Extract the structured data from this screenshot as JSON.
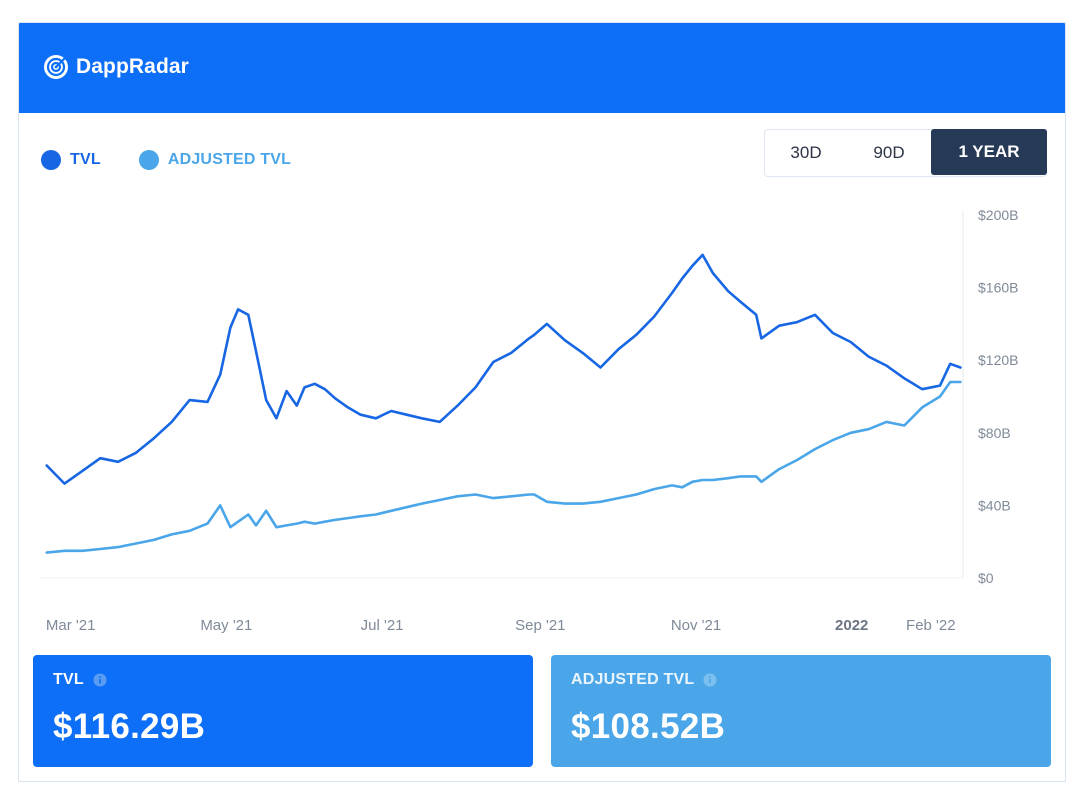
{
  "header": {
    "brand": "DappRadar",
    "logo_icon": "dappradar-radar-icon"
  },
  "legend": [
    {
      "label": "TVL",
      "color": "#1766e3"
    },
    {
      "label": "ADJUSTED TVL",
      "color": "#4aa6e8"
    }
  ],
  "range_selector": {
    "options": [
      "30D",
      "90D",
      "1 YEAR"
    ],
    "selected": "1 YEAR"
  },
  "chart_data": {
    "type": "line",
    "x_axis_ticks": [
      "Mar '21",
      "May '21",
      "Jul '21",
      "Sep '21",
      "Nov '21",
      "2022",
      "Feb '22"
    ],
    "y_axis_ticks": [
      "$0",
      "$40B",
      "$80B",
      "$120B",
      "$160B",
      "$200B"
    ],
    "ylim": [
      0,
      200
    ],
    "y_unit": "B USD",
    "x": [
      "2021-03-01",
      "2021-03-08",
      "2021-03-15",
      "2021-03-22",
      "2021-03-29",
      "2021-04-05",
      "2021-04-12",
      "2021-04-19",
      "2021-04-26",
      "2021-05-03",
      "2021-05-08",
      "2021-05-12",
      "2021-05-15",
      "2021-05-19",
      "2021-05-22",
      "2021-05-26",
      "2021-05-30",
      "2021-06-03",
      "2021-06-07",
      "2021-06-10",
      "2021-06-14",
      "2021-06-18",
      "2021-06-22",
      "2021-06-27",
      "2021-07-02",
      "2021-07-08",
      "2021-07-14",
      "2021-07-20",
      "2021-07-26",
      "2021-08-02",
      "2021-08-09",
      "2021-08-16",
      "2021-08-23",
      "2021-08-30",
      "2021-09-06",
      "2021-09-08",
      "2021-09-13",
      "2021-09-20",
      "2021-09-27",
      "2021-10-04",
      "2021-10-11",
      "2021-10-18",
      "2021-10-25",
      "2021-11-01",
      "2021-11-05",
      "2021-11-09",
      "2021-11-13",
      "2021-11-17",
      "2021-11-23",
      "2021-11-28",
      "2021-12-04",
      "2021-12-06",
      "2021-12-13",
      "2021-12-20",
      "2021-12-27",
      "2022-01-03",
      "2022-01-10",
      "2022-01-17",
      "2022-01-24",
      "2022-01-31",
      "2022-02-07",
      "2022-02-14",
      "2022-02-18",
      "2022-02-22"
    ],
    "series": [
      {
        "name": "TVL",
        "color": "#1766e3",
        "values": [
          62,
          52,
          59,
          66,
          64,
          69,
          77,
          86,
          98,
          97,
          112,
          138,
          148,
          145,
          125,
          98,
          88,
          103,
          95,
          105,
          107,
          104,
          99,
          94,
          90,
          88,
          92,
          90,
          88,
          86,
          95,
          105,
          119,
          124,
          132,
          134,
          140,
          131,
          124,
          116,
          126,
          134,
          144,
          157,
          165,
          172,
          178,
          168,
          158,
          152,
          145,
          132,
          139,
          141,
          145,
          135,
          130,
          122,
          117,
          110,
          104,
          106,
          118,
          116
        ],
        "latest_label": "TVL",
        "latest_value": "$116.29B"
      },
      {
        "name": "ADJUSTED TVL",
        "color": "#4aa6e8",
        "values": [
          14,
          15,
          15,
          16,
          17,
          19,
          21,
          24,
          26,
          30,
          40,
          28,
          31,
          35,
          29,
          37,
          28,
          29,
          30,
          31,
          30,
          31,
          32,
          33,
          34,
          35,
          37,
          39,
          41,
          43,
          45,
          46,
          44,
          45,
          46,
          46,
          42,
          41,
          41,
          42,
          44,
          46,
          49,
          51,
          50,
          53,
          54,
          54,
          55,
          56,
          56,
          53,
          60,
          65,
          71,
          76,
          80,
          82,
          86,
          84,
          94,
          100,
          108,
          108
        ],
        "latest_label": "ADJUSTED TVL",
        "latest_value": "$108.52B"
      }
    ]
  }
}
